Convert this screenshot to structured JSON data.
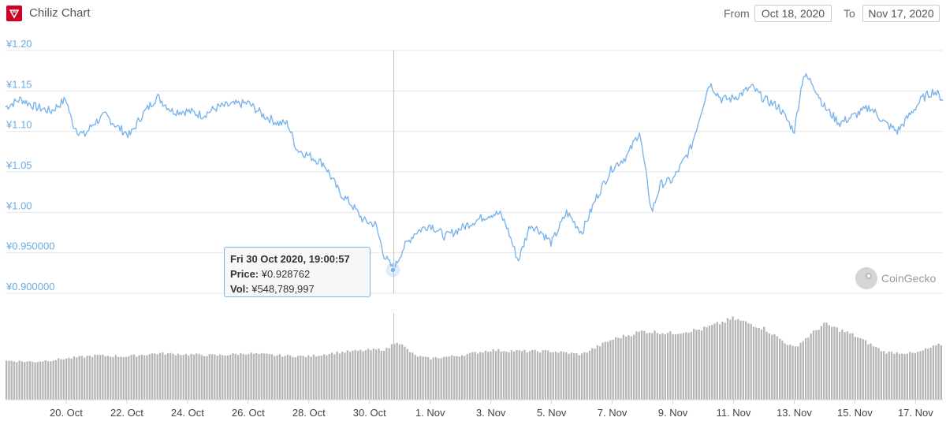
{
  "header": {
    "title": "Chiliz Chart",
    "from_label": "From",
    "from_value": "Oct 18, 2020",
    "to_label": "To",
    "to_value": "Nov 17, 2020"
  },
  "tooltip": {
    "date": "Fri 30 Oct 2020, 19:00:57",
    "price_label": "Price:",
    "price_value": "¥0.928762",
    "vol_label": "Vol:",
    "vol_value": "¥548,789,997"
  },
  "watermark": {
    "text": "CoinGecko",
    "icon": "coingecko-icon"
  },
  "colors": {
    "price_line": "#7cb5ec",
    "volume_bar": "#b5b5b5",
    "axis_text": "#6aace4",
    "brand": "#cd0124"
  },
  "chart_data": [
    {
      "type": "line",
      "name": "price",
      "y_ticks": [
        "¥1.20",
        "¥1.15",
        "¥1.10",
        "¥1.05",
        "¥1.00",
        "¥0.950000",
        "¥0.900000"
      ],
      "y_tick_values": [
        1.2,
        1.15,
        1.1,
        1.05,
        1.0,
        0.95,
        0.9
      ],
      "ylim": [
        0.9,
        1.2
      ],
      "x_ticks": [
        "20. Oct",
        "22. Oct",
        "24. Oct",
        "26. Oct",
        "28. Oct",
        "30. Oct",
        "1. Nov",
        "3. Nov",
        "5. Nov",
        "7. Nov",
        "9. Nov",
        "11. Nov",
        "13. Nov",
        "15. Nov",
        "17. Nov"
      ],
      "x_tick_days": [
        2,
        4,
        6,
        8,
        10,
        12,
        14,
        16,
        18,
        20,
        22,
        24,
        26,
        28,
        30
      ],
      "xlim_days": [
        0,
        30.9
      ],
      "x_unit": "days after Oct 18, 2020",
      "crosshair_day": 12.8,
      "grid": true,
      "series": [
        {
          "x": [
            0,
            0.5,
            1.0,
            1.5,
            2.0,
            2.2,
            2.4,
            2.6,
            2.9,
            3.3,
            3.7,
            4.1,
            4.5,
            5.0,
            5.5,
            6.0,
            6.5,
            7.0,
            7.5,
            8.0,
            8.5,
            9.0,
            9.3,
            9.6,
            10.0,
            10.5,
            11.0,
            11.4,
            11.8,
            12.2,
            12.5,
            12.8,
            13.1,
            13.5,
            14.0,
            14.5,
            15.0,
            15.5,
            16.0,
            16.3,
            16.5,
            16.9,
            17.3,
            17.6,
            18.0,
            18.5,
            19.0,
            19.5,
            20.0,
            20.5,
            20.9,
            21.3,
            21.6,
            22.0,
            22.6,
            23.2,
            23.6,
            23.9,
            24.2,
            24.6,
            25.0,
            25.5,
            26.0,
            26.3,
            26.6,
            27.0,
            27.5,
            28.0,
            28.5,
            29.0,
            29.4,
            29.8,
            30.2,
            30.6,
            30.9
          ],
          "y": [
            1.13,
            1.14,
            1.13,
            1.125,
            1.14,
            1.11,
            1.1,
            1.095,
            1.11,
            1.12,
            1.105,
            1.095,
            1.12,
            1.143,
            1.125,
            1.125,
            1.12,
            1.13,
            1.133,
            1.135,
            1.12,
            1.11,
            1.11,
            1.078,
            1.07,
            1.06,
            1.025,
            1.01,
            0.99,
            0.985,
            0.945,
            0.929,
            0.955,
            0.975,
            0.985,
            0.97,
            0.98,
            0.99,
            0.998,
            0.998,
            0.985,
            0.94,
            0.985,
            0.978,
            0.962,
            1.0,
            0.975,
            1.02,
            1.055,
            1.07,
            1.1,
            1.0,
            1.035,
            1.04,
            1.08,
            1.16,
            1.14,
            1.14,
            1.145,
            1.155,
            1.14,
            1.13,
            1.1,
            1.17,
            1.16,
            1.13,
            1.11,
            1.12,
            1.13,
            1.11,
            1.1,
            1.12,
            1.14,
            1.15,
            1.14
          ]
        }
      ]
    },
    {
      "type": "bar",
      "name": "volume",
      "x_days": [
        0,
        1.0,
        2.0,
        3.0,
        4.0,
        5.0,
        6.0,
        7.0,
        8.0,
        9.0,
        10.0,
        11.0,
        12.0,
        12.6,
        12.9,
        13.5,
        14.0,
        15.0,
        16.0,
        17.0,
        18.0,
        19.0,
        20.0,
        21.0,
        22.0,
        23.0,
        24.0,
        25.0,
        26.0,
        27.0,
        28.0,
        29.0,
        30.0,
        30.9
      ],
      "relative_values": [
        0.37,
        0.36,
        0.39,
        0.42,
        0.41,
        0.44,
        0.43,
        0.42,
        0.44,
        0.42,
        0.41,
        0.45,
        0.47,
        0.48,
        0.56,
        0.42,
        0.39,
        0.42,
        0.47,
        0.46,
        0.46,
        0.43,
        0.57,
        0.65,
        0.63,
        0.67,
        0.77,
        0.68,
        0.49,
        0.72,
        0.61,
        0.45,
        0.44,
        0.53
      ]
    }
  ]
}
